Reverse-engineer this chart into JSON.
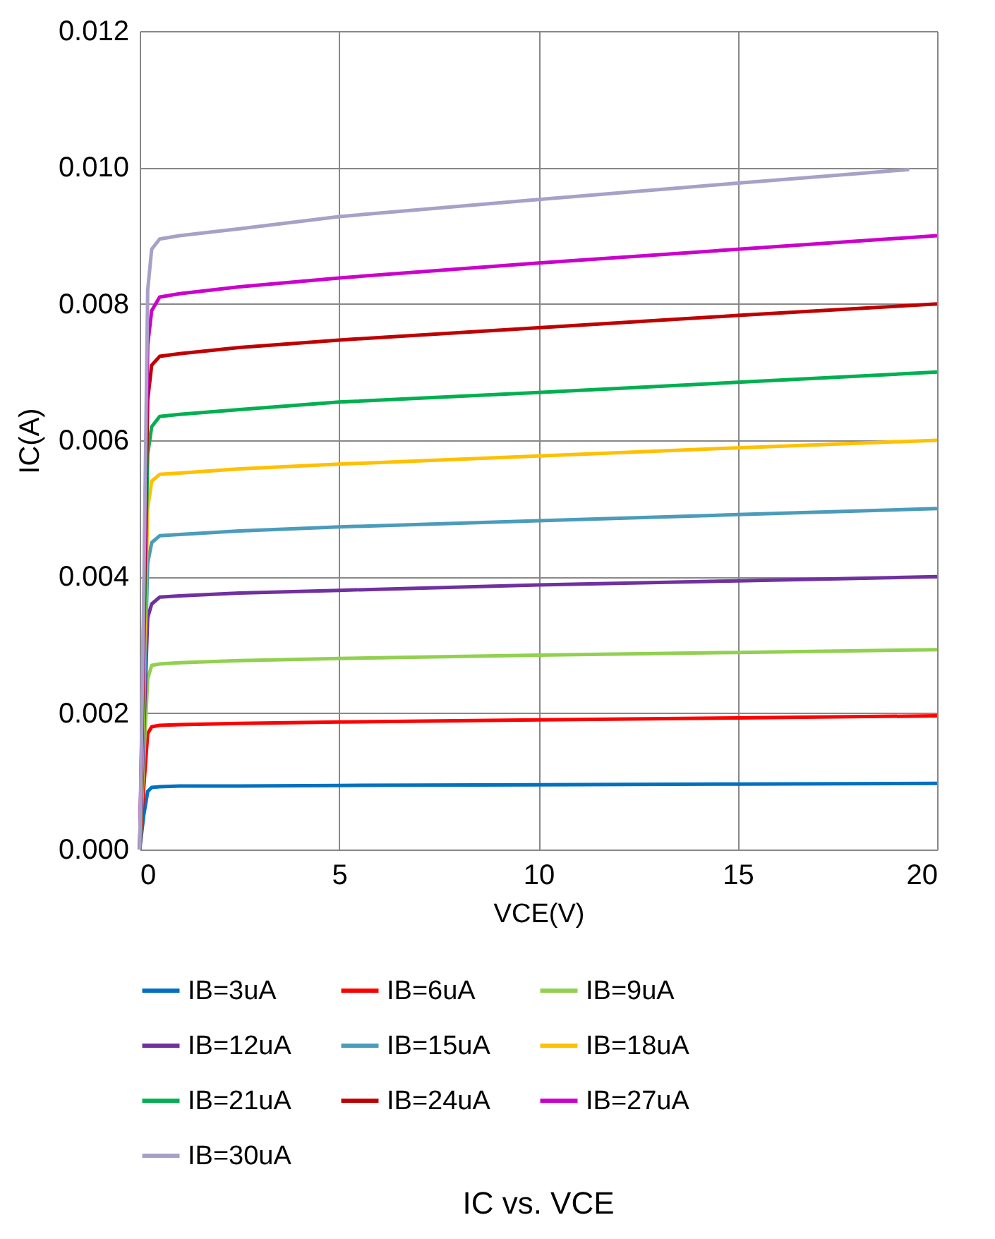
{
  "chart_data": {
    "type": "line",
    "title": "IC vs. VCE",
    "xlabel": "VCE(V)",
    "ylabel": "IC(A)",
    "x": [
      0,
      0.1,
      0.2,
      0.3,
      0.5,
      1,
      2.5,
      5,
      10,
      15,
      20
    ],
    "xlim": [
      0,
      20
    ],
    "xticks": [
      0,
      5,
      10,
      15,
      20
    ],
    "ylim": [
      0,
      0.012
    ],
    "yticks": [
      {
        "value": 0,
        "label": "0.000"
      },
      {
        "value": 0.002,
        "label": "0.002"
      },
      {
        "value": 0.004,
        "label": "0.004"
      },
      {
        "value": 0.006,
        "label": "0.006"
      },
      {
        "value": 0.008,
        "label": "0.008"
      },
      {
        "value": 0.01,
        "label": "0.010"
      },
      {
        "value": 0.012,
        "label": "0.012"
      }
    ],
    "grid": true,
    "legend": "bottom",
    "series": [
      {
        "name": "IB=3uA",
        "color": "#0070c0",
        "values": [
          0,
          0.0005,
          0.00085,
          0.00091,
          0.00092,
          0.00093,
          0.00093,
          0.00094,
          0.00095,
          0.00096,
          0.00097
        ]
      },
      {
        "name": "IB=6uA",
        "color": "#ff0000",
        "values": [
          0,
          0.0009,
          0.0017,
          0.0018,
          0.00182,
          0.00183,
          0.00185,
          0.00187,
          0.0019,
          0.00193,
          0.00196
        ]
      },
      {
        "name": "IB=9uA",
        "color": "#92d050",
        "values": [
          0,
          0.0013,
          0.0025,
          0.0027,
          0.00272,
          0.00274,
          0.00277,
          0.0028,
          0.00285,
          0.00289,
          0.00293
        ]
      },
      {
        "name": "IB=12uA",
        "color": "#7030a0",
        "values": [
          0,
          0.0017,
          0.0034,
          0.0036,
          0.0037,
          0.00372,
          0.00376,
          0.0038,
          0.00388,
          0.00394,
          0.004
        ]
      },
      {
        "name": "IB=15uA",
        "color": "#4b9cbb",
        "values": [
          0,
          0.002,
          0.0042,
          0.0045,
          0.0046,
          0.00462,
          0.00467,
          0.00473,
          0.00482,
          0.00491,
          0.005
        ]
      },
      {
        "name": "IB=18uA",
        "color": "#ffc000",
        "values": [
          0,
          0.0024,
          0.005,
          0.0054,
          0.0055,
          0.00552,
          0.00558,
          0.00565,
          0.00577,
          0.00589,
          0.006
        ]
      },
      {
        "name": "IB=21uA",
        "color": "#00b050",
        "values": [
          0,
          0.0028,
          0.0058,
          0.0062,
          0.00635,
          0.00638,
          0.00645,
          0.00656,
          0.0067,
          0.00685,
          0.007
        ]
      },
      {
        "name": "IB=24uA",
        "color": "#c00000",
        "values": [
          0,
          0.0031,
          0.0066,
          0.0071,
          0.00723,
          0.00727,
          0.00736,
          0.00747,
          0.00765,
          0.00783,
          0.008
        ]
      },
      {
        "name": "IB=27uA",
        "color": "#cc00cc",
        "values": [
          0,
          0.0034,
          0.0074,
          0.0079,
          0.0081,
          0.00815,
          0.00825,
          0.00838,
          0.0086,
          0.0088,
          0.009
        ]
      },
      {
        "name": "IB=30uA",
        "color": "#a9a0c8",
        "x": [
          0,
          0.1,
          0.2,
          0.3,
          0.5,
          1,
          2.5,
          5,
          10,
          15,
          19.3
        ],
        "values": [
          0,
          0.0037,
          0.0082,
          0.0088,
          0.00895,
          0.009,
          0.0091,
          0.00928,
          0.00953,
          0.00977,
          0.00997
        ]
      }
    ]
  }
}
